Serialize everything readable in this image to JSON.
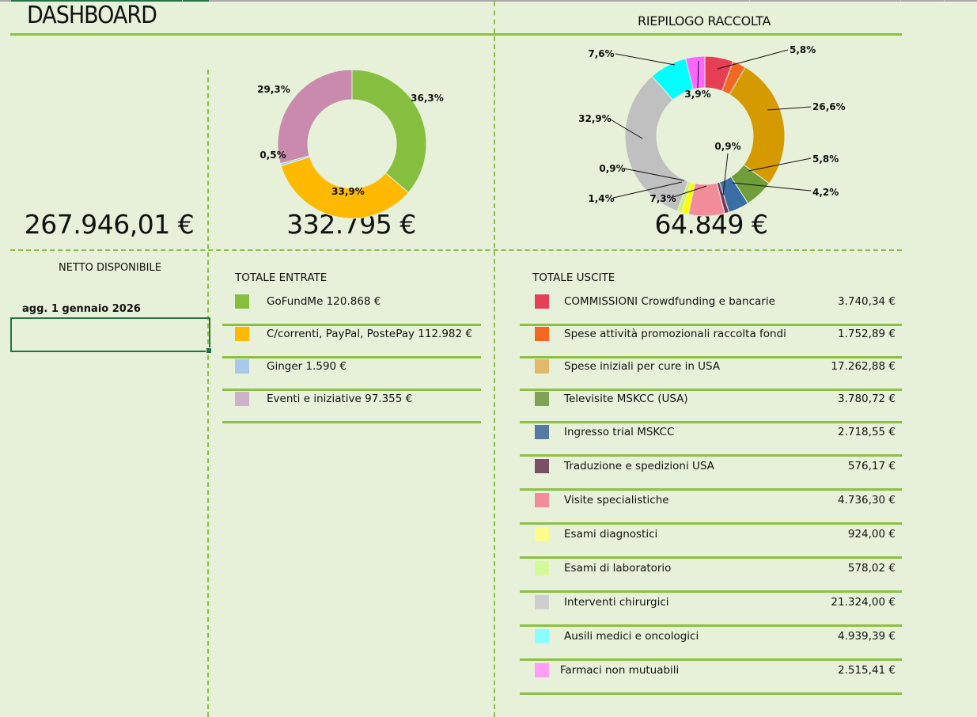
{
  "header": {
    "title": "DASHBOARD",
    "section_title": "RIEPILOGO RACCOLTA"
  },
  "netto": {
    "value": "267.946,01 €",
    "label": "NETTO DISPONIBILE",
    "updated": "agg. 1 gennaio 2026"
  },
  "entrate": {
    "total": "332.795 €",
    "heading": "TOTALE ENTRATE",
    "items": [
      {
        "label": "GoFundMe 120.868 €",
        "color": "#86bf3f"
      },
      {
        "label": "C/correnti, PayPal, PostePay 112.982 €",
        "color": "#ffb900"
      },
      {
        "label": "Ginger 1.590 €",
        "color": "#a9c9ea"
      },
      {
        "label": "Eventi e iniziative 97.355 €",
        "color": "#ccb2c8"
      }
    ]
  },
  "uscite": {
    "total": "64.849 €",
    "heading": "TOTALE USCITE",
    "items": [
      {
        "label": "COMMISSIONI Crowdfunding e bancarie",
        "amount": "3.740,34 €",
        "color": "#e63f55"
      },
      {
        "label": "Spese attività promozionali raccolta fondi",
        "amount": "1.752,89 €",
        "color": "#f26722"
      },
      {
        "label": "Spese iniziali per cure in USA",
        "amount": "17.262,88 €",
        "color": "#e2b96a"
      },
      {
        "label": "Televisite MSKCC (USA)",
        "amount": "3.780,72 €",
        "color": "#7ea356"
      },
      {
        "label": "Ingresso trial MSKCC",
        "amount": "2.718,55 €",
        "color": "#5479a3"
      },
      {
        "label": "Traduzione e spedizioni USA",
        "amount": "576,17 €",
        "color": "#7a5064"
      },
      {
        "label": "Visite specialistiche",
        "amount": "4.736,30 €",
        "color": "#f28c98"
      },
      {
        "label": "Esami diagnostici",
        "amount": "924,00 €",
        "color": "#fdfd87"
      },
      {
        "label": "Esami di laboratorio",
        "amount": "578,02 €",
        "color": "#d4f99a"
      },
      {
        "label": "Interventi chirurgici",
        "amount": "21.324,00 €",
        "color": "#cfcfcf"
      },
      {
        "label": "Ausili medici e oncologici",
        "amount": "4.939,39 €",
        "color": "#8affff"
      },
      {
        "label": "Farmaci non mutuabili",
        "amount": "2.515,41 €",
        "color": "#ff9df7"
      }
    ]
  },
  "chart_data": [
    {
      "type": "pie",
      "subtype": "doughnut",
      "title": "",
      "categories": [
        "GoFundMe",
        "C/correnti, PayPal, PostePay",
        "Ginger",
        "Eventi e iniziative"
      ],
      "values": [
        120868,
        112982,
        1590,
        97355
      ],
      "labels": [
        "36,3%",
        "33,9%",
        "0,5%",
        "29,3%"
      ],
      "colors": [
        "#86bf3f",
        "#ffb900",
        "#a9c9ea",
        "#c98aad"
      ]
    },
    {
      "type": "pie",
      "subtype": "doughnut",
      "title": "RIEPILOGO RACCOLTA",
      "categories": [
        "COMMISSIONI Crowdfunding e bancarie",
        "Spese attività promozionali raccolta fondi",
        "Spese iniziali per cure in USA",
        "Televisite MSKCC (USA)",
        "Ingresso trial MSKCC",
        "Traduzione e spedizioni USA",
        "Visite specialistiche",
        "Esami diagnostici",
        "Esami di laboratorio",
        "Interventi chirurgici",
        "Ausili medici e oncologici",
        "Farmaci non mutuabili"
      ],
      "values": [
        3740.34,
        1752.89,
        17262.88,
        3780.72,
        2718.55,
        576.17,
        4736.3,
        924.0,
        578.02,
        21324.0,
        4939.39,
        2515.41
      ],
      "labels": [
        "5,8%",
        "",
        "26,6%",
        "5,8%",
        "4,2%",
        "0,9%",
        "7,3%",
        "1,4%",
        "0,9%",
        "32,9%",
        "7,6%",
        "3,9%"
      ],
      "colors": [
        "#e63f55",
        "#f26722",
        "#d49a00",
        "#6f9e3a",
        "#3a6fa5",
        "#7a3560",
        "#f28c98",
        "#ffff00",
        "#c8f56a",
        "#c0c0c0",
        "#00ffff",
        "#ff66ff"
      ]
    }
  ]
}
